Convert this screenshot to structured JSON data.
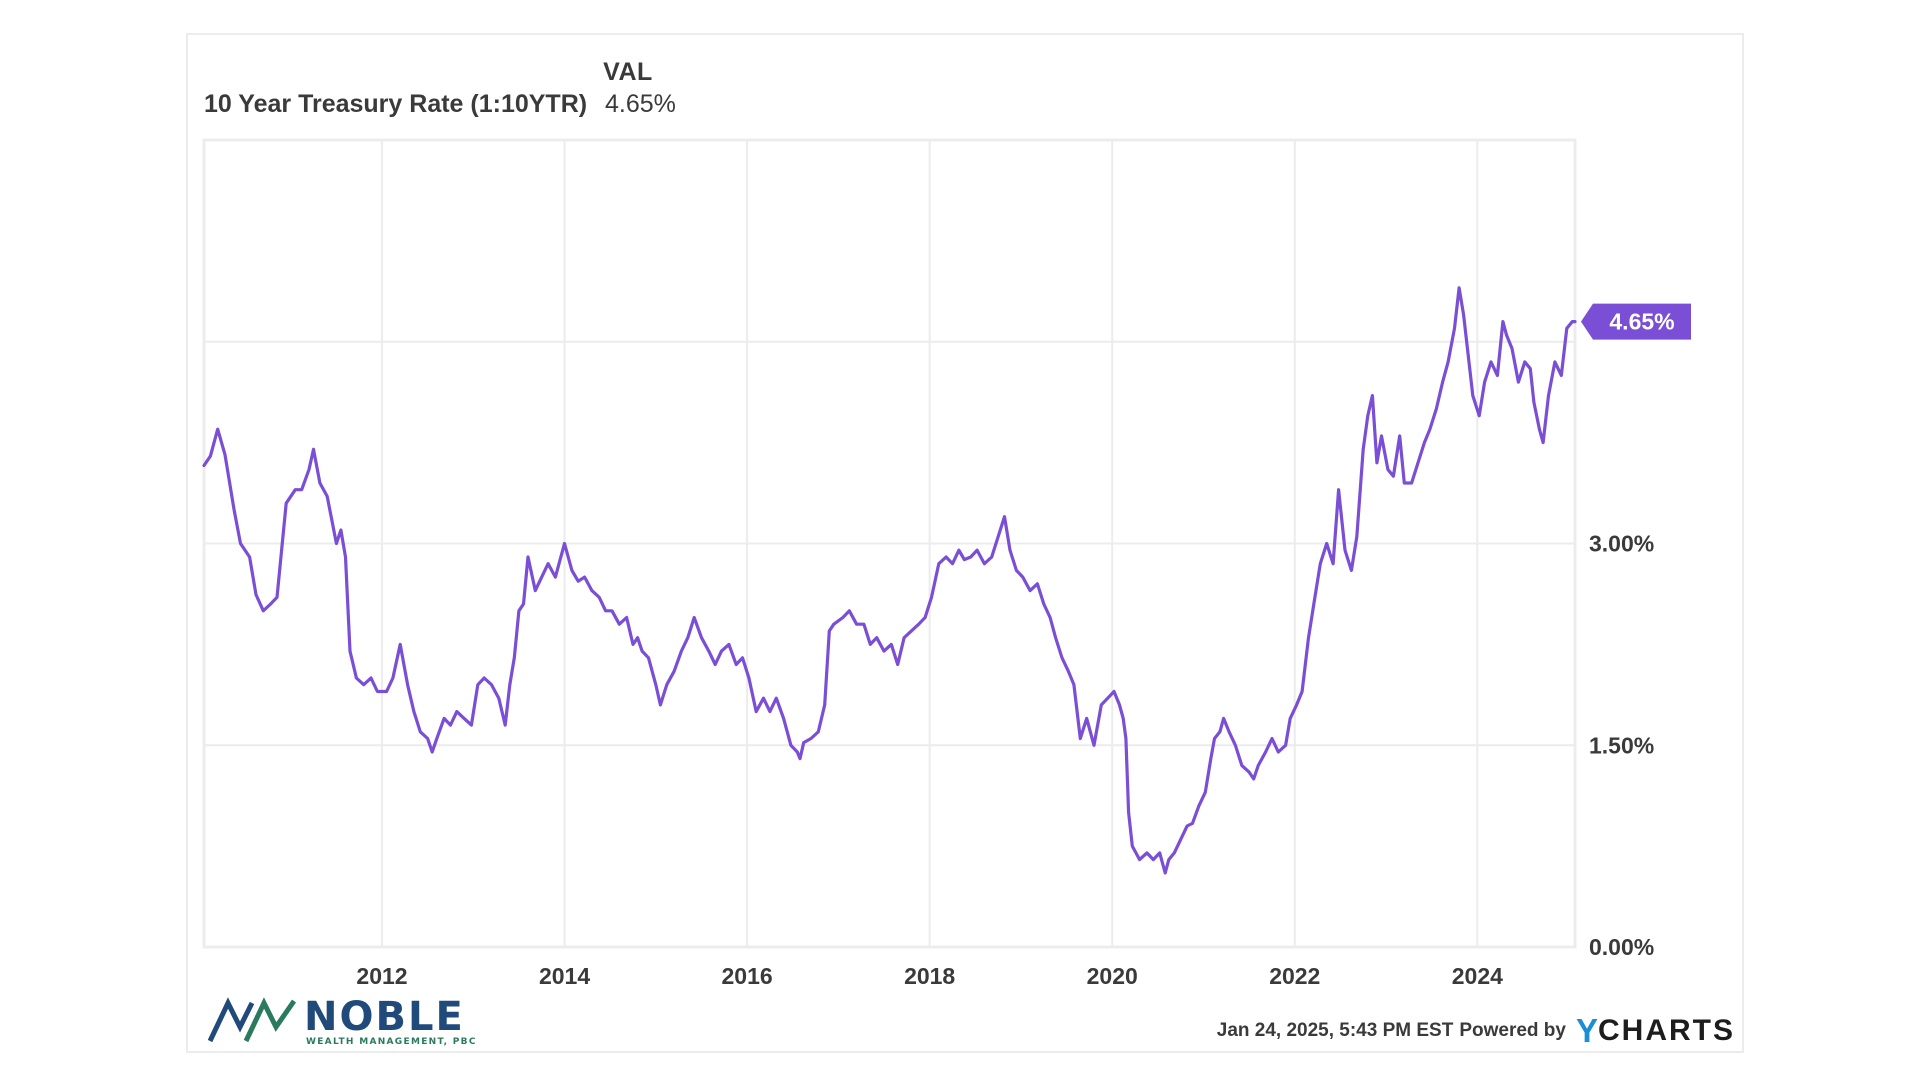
{
  "legend": {
    "header": "VAL",
    "series_name": "10 Year Treasury Rate (1:10YTR)",
    "series_value": "4.65%"
  },
  "colors": {
    "line": "#7a4fd6",
    "grid": "#ececec",
    "label_bg": "#7a4fd6"
  },
  "logo": {
    "name": "NOBLE",
    "tagline": "WEALTH MANAGEMENT, PBC"
  },
  "footer": {
    "timestamp": "Jan 24, 2025, 5:43 PM EST",
    "powered_by": "Powered by",
    "brand_y": "Y",
    "brand_rest": "CHARTS"
  },
  "chart_data": {
    "type": "line",
    "title": "10 Year Treasury Rate (1:10YTR)",
    "xlabel": "",
    "ylabel": "",
    "xlim": [
      2010.05,
      2025.07
    ],
    "ylim": [
      0,
      6
    ],
    "x_ticks": [
      2012,
      2014,
      2016,
      2018,
      2020,
      2022,
      2024
    ],
    "x_tick_labels": [
      "2012",
      "2014",
      "2016",
      "2018",
      "2020",
      "2022",
      "2024"
    ],
    "y_ticks": [
      0,
      1.5,
      3,
      4.5
    ],
    "y_tick_labels": [
      "0.00%",
      "1.50%",
      "3.00%",
      ""
    ],
    "last_value_label": "4.65%",
    "legend_position": "top-left",
    "grid": true,
    "series": [
      {
        "name": "10 Year Treasury Rate",
        "x": [
          2010.05,
          2010.12,
          2010.2,
          2010.28,
          2010.38,
          2010.45,
          2010.55,
          2010.62,
          2010.7,
          2010.78,
          2010.85,
          2010.95,
          2011.05,
          2011.12,
          2011.2,
          2011.25,
          2011.32,
          2011.4,
          2011.5,
          2011.55,
          2011.6,
          2011.65,
          2011.72,
          2011.8,
          2011.88,
          2011.95,
          2012.05,
          2012.12,
          2012.2,
          2012.28,
          2012.35,
          2012.42,
          2012.5,
          2012.55,
          2012.6,
          2012.68,
          2012.75,
          2012.82,
          2012.9,
          2012.98,
          2013.05,
          2013.12,
          2013.2,
          2013.28,
          2013.35,
          2013.4,
          2013.45,
          2013.5,
          2013.55,
          2013.6,
          2013.68,
          2013.75,
          2013.82,
          2013.9,
          2014.0,
          2014.08,
          2014.15,
          2014.22,
          2014.3,
          2014.38,
          2014.45,
          2014.52,
          2014.6,
          2014.68,
          2014.75,
          2014.8,
          2014.85,
          2014.92,
          2015.0,
          2015.05,
          2015.12,
          2015.2,
          2015.28,
          2015.35,
          2015.42,
          2015.5,
          2015.58,
          2015.65,
          2015.72,
          2015.8,
          2015.88,
          2015.95,
          2016.02,
          2016.1,
          2016.18,
          2016.25,
          2016.32,
          2016.4,
          2016.48,
          2016.55,
          2016.58,
          2016.62,
          2016.7,
          2016.78,
          2016.85,
          2016.9,
          2016.95,
          2017.05,
          2017.12,
          2017.2,
          2017.28,
          2017.35,
          2017.42,
          2017.5,
          2017.58,
          2017.65,
          2017.72,
          2017.8,
          2017.88,
          2017.95,
          2018.02,
          2018.1,
          2018.18,
          2018.25,
          2018.32,
          2018.38,
          2018.45,
          2018.52,
          2018.6,
          2018.68,
          2018.75,
          2018.82,
          2018.88,
          2018.95,
          2019.02,
          2019.1,
          2019.18,
          2019.25,
          2019.32,
          2019.38,
          2019.45,
          2019.52,
          2019.58,
          2019.65,
          2019.72,
          2019.8,
          2019.88,
          2019.95,
          2020.02,
          2020.08,
          2020.12,
          2020.15,
          2020.18,
          2020.22,
          2020.3,
          2020.38,
          2020.45,
          2020.52,
          2020.58,
          2020.62,
          2020.68,
          2020.75,
          2020.82,
          2020.88,
          2020.95,
          2021.02,
          2021.08,
          2021.12,
          2021.18,
          2021.22,
          2021.28,
          2021.35,
          2021.42,
          2021.5,
          2021.55,
          2021.6,
          2021.68,
          2021.75,
          2021.82,
          2021.9,
          2021.95,
          2022.02,
          2022.08,
          2022.15,
          2022.22,
          2022.28,
          2022.35,
          2022.42,
          2022.48,
          2022.55,
          2022.62,
          2022.68,
          2022.75,
          2022.8,
          2022.85,
          2022.9,
          2022.95,
          2023.02,
          2023.08,
          2023.15,
          2023.2,
          2023.28,
          2023.35,
          2023.42,
          2023.48,
          2023.55,
          2023.62,
          2023.68,
          2023.75,
          2023.8,
          2023.85,
          2023.9,
          2023.95,
          2024.02,
          2024.08,
          2024.15,
          2024.22,
          2024.28,
          2024.32,
          2024.38,
          2024.45,
          2024.52,
          2024.58,
          2024.62,
          2024.68,
          2024.72,
          2024.78,
          2024.85,
          2024.92,
          2024.98,
          2025.04,
          2025.07
        ],
        "y": [
          3.58,
          3.65,
          3.85,
          3.66,
          3.25,
          3.0,
          2.9,
          2.62,
          2.5,
          2.55,
          2.6,
          3.3,
          3.4,
          3.4,
          3.55,
          3.7,
          3.45,
          3.35,
          3.0,
          3.1,
          2.9,
          2.2,
          2.0,
          1.95,
          2.0,
          1.9,
          1.9,
          2.0,
          2.25,
          1.95,
          1.75,
          1.6,
          1.55,
          1.45,
          1.55,
          1.7,
          1.65,
          1.75,
          1.7,
          1.65,
          1.95,
          2.0,
          1.95,
          1.85,
          1.65,
          1.95,
          2.15,
          2.5,
          2.55,
          2.9,
          2.65,
          2.75,
          2.85,
          2.75,
          3.0,
          2.8,
          2.72,
          2.75,
          2.65,
          2.6,
          2.5,
          2.5,
          2.4,
          2.45,
          2.25,
          2.3,
          2.2,
          2.15,
          1.95,
          1.8,
          1.95,
          2.05,
          2.2,
          2.3,
          2.45,
          2.3,
          2.2,
          2.1,
          2.2,
          2.25,
          2.1,
          2.15,
          2.0,
          1.75,
          1.85,
          1.75,
          1.85,
          1.7,
          1.5,
          1.45,
          1.4,
          1.52,
          1.55,
          1.6,
          1.8,
          2.35,
          2.4,
          2.45,
          2.5,
          2.4,
          2.4,
          2.25,
          2.3,
          2.2,
          2.25,
          2.1,
          2.3,
          2.35,
          2.4,
          2.45,
          2.6,
          2.85,
          2.9,
          2.85,
          2.95,
          2.88,
          2.9,
          2.95,
          2.85,
          2.9,
          3.05,
          3.2,
          2.95,
          2.8,
          2.75,
          2.65,
          2.7,
          2.55,
          2.45,
          2.3,
          2.15,
          2.05,
          1.95,
          1.55,
          1.7,
          1.5,
          1.8,
          1.85,
          1.9,
          1.8,
          1.7,
          1.55,
          1.0,
          0.75,
          0.65,
          0.7,
          0.65,
          0.7,
          0.55,
          0.65,
          0.7,
          0.8,
          0.9,
          0.92,
          1.05,
          1.15,
          1.4,
          1.55,
          1.6,
          1.7,
          1.6,
          1.5,
          1.35,
          1.3,
          1.25,
          1.35,
          1.45,
          1.55,
          1.45,
          1.5,
          1.7,
          1.8,
          1.9,
          2.3,
          2.6,
          2.85,
          3.0,
          2.85,
          3.4,
          2.95,
          2.8,
          3.05,
          3.7,
          3.95,
          4.1,
          3.6,
          3.8,
          3.55,
          3.5,
          3.8,
          3.45,
          3.45,
          3.6,
          3.75,
          3.85,
          4.0,
          4.2,
          4.35,
          4.6,
          4.9,
          4.7,
          4.4,
          4.1,
          3.95,
          4.2,
          4.35,
          4.25,
          4.65,
          4.55,
          4.45,
          4.2,
          4.35,
          4.3,
          4.05,
          3.85,
          3.75,
          4.1,
          4.35,
          4.25,
          4.6,
          4.65,
          4.65
        ]
      }
    ]
  }
}
